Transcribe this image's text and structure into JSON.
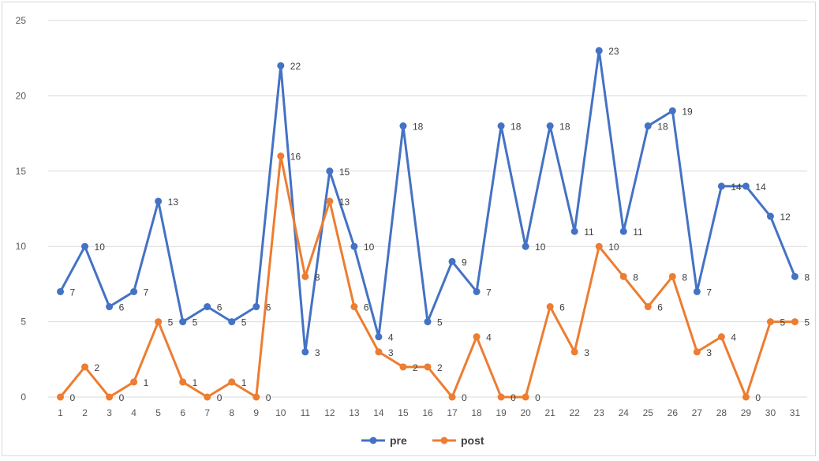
{
  "chart_data": {
    "type": "line",
    "title": "",
    "xlabel": "",
    "ylabel": "",
    "categories": [
      "1",
      "2",
      "3",
      "4",
      "5",
      "6",
      "7",
      "8",
      "9",
      "10",
      "11",
      "12",
      "13",
      "14",
      "15",
      "16",
      "17",
      "18",
      "19",
      "20",
      "21",
      "22",
      "23",
      "24",
      "25",
      "26",
      "27",
      "28",
      "29",
      "30",
      "31"
    ],
    "y_ticks": [
      "0",
      "5",
      "10",
      "15",
      "20",
      "25"
    ],
    "ylim": [
      0,
      25
    ],
    "grid": "horizontal",
    "legend_position": "bottom",
    "series": [
      {
        "name": "pre",
        "color": "#4472C4",
        "values": [
          7,
          10,
          6,
          7,
          13,
          5,
          6,
          5,
          6,
          22,
          3,
          15,
          10,
          4,
          18,
          5,
          9,
          7,
          18,
          10,
          18,
          11,
          23,
          11,
          18,
          19,
          7,
          14,
          14,
          12,
          8
        ]
      },
      {
        "name": "post",
        "color": "#ED7D31",
        "values": [
          0,
          2,
          0,
          1,
          5,
          1,
          0,
          1,
          0,
          16,
          8,
          13,
          6,
          3,
          2,
          2,
          0,
          4,
          0,
          0,
          6,
          3,
          10,
          8,
          6,
          8,
          3,
          4,
          0,
          5,
          5
        ]
      }
    ]
  }
}
